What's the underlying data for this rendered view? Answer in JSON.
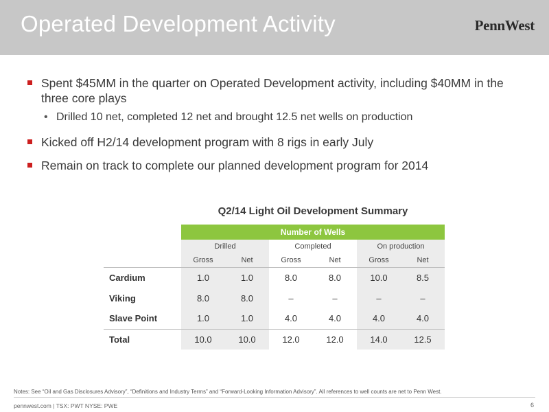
{
  "header": {
    "title": "Operated Development Activity",
    "logo": "PennWest"
  },
  "bullets": [
    {
      "text": "Spent $45MM in the quarter on Operated Development activity, including $40MM in the three core plays"
    },
    {
      "sub": "Drilled 10 net, completed 12 net and brought 12.5 net wells on production"
    },
    {
      "text": "Kicked off H2/14 development program with 8 rigs in early July"
    },
    {
      "text": "Remain on track to complete our planned development program for 2014"
    }
  ],
  "table": {
    "title": "Q2/14 Light Oil Development Summary",
    "group_header": "Number of Wells",
    "groups": [
      "Drilled",
      "Completed",
      "On production"
    ],
    "subheaders": [
      "Gross",
      "Net",
      "Gross",
      "Net",
      "Gross",
      "Net"
    ],
    "rows": [
      {
        "label": "Cardium",
        "values": [
          "1.0",
          "1.0",
          "8.0",
          "8.0",
          "10.0",
          "8.5"
        ]
      },
      {
        "label": "Viking",
        "values": [
          "8.0",
          "8.0",
          "–",
          "–",
          "–",
          "–"
        ]
      },
      {
        "label": "Slave Point",
        "values": [
          "1.0",
          "1.0",
          "4.0",
          "4.0",
          "4.0",
          "4.0"
        ]
      },
      {
        "label": "Total",
        "values": [
          "10.0",
          "10.0",
          "12.0",
          "12.0",
          "14.0",
          "12.5"
        ]
      }
    ]
  },
  "notes": "Notes: See “Oil and Gas Disclosures Advisory”, “Definitions and Industry Terms” and “Forward-Looking Information Advisory”. All references to well counts are net to Penn West.",
  "footer": {
    "text": "pennwest.com | TSX: PWT  NYSE: PWE",
    "page": "6"
  },
  "colors": {
    "header_bg": "#c7c7c7",
    "bullet": "#cc1f1f",
    "table_header": "#8dc63f",
    "shaded": "#ececec"
  }
}
